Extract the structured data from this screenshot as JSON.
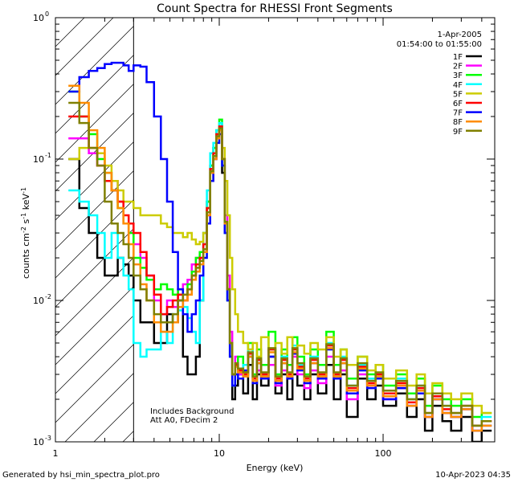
{
  "chart_data": {
    "type": "line",
    "title": "Count Spectra for RHESSI Front Segments",
    "xlabel": "Energy (keV)",
    "ylabel_parts": {
      "a": "counts cm",
      "b": "-2",
      "c": " s",
      "d": "-1",
      "e": " keV",
      "f": "-1"
    },
    "xscale": "log",
    "yscale": "log",
    "xlim": [
      1,
      480
    ],
    "ylim": [
      0.001,
      1
    ],
    "x_ticks": [
      {
        "value": 1,
        "label": "1"
      },
      {
        "value": 10,
        "label": "10"
      },
      {
        "value": 100,
        "label": "100"
      }
    ],
    "y_ticks": [
      {
        "value": 0.001,
        "base": "10",
        "exp": "-3"
      },
      {
        "value": 0.01,
        "base": "10",
        "exp": "-2"
      },
      {
        "value": 0.1,
        "base": "10",
        "exp": "-1"
      },
      {
        "value": 1,
        "base": "10",
        "exp": "0"
      }
    ],
    "date": "1-Apr-2005",
    "time_range": "01:54:00 to 01:55:00",
    "annotation_lines": [
      "Includes Background",
      "Att A0, FDecim 2"
    ],
    "attenuator_cutoff_keV": 3,
    "energy_edges": [
      1.2,
      1.4,
      1.6,
      1.8,
      2.0,
      2.2,
      2.4,
      2.6,
      2.8,
      3.0,
      3.3,
      3.6,
      4.0,
      4.4,
      4.8,
      5.2,
      5.6,
      6.0,
      6.4,
      6.8,
      7.2,
      7.6,
      8.0,
      8.4,
      8.8,
      9.2,
      9.6,
      10.0,
      10.4,
      10.8,
      11.2,
      11.6,
      12.0,
      12.5,
      13,
      14,
      15,
      16,
      17,
      18,
      20,
      22,
      24,
      26,
      28,
      30,
      33,
      36,
      40,
      45,
      50,
      55,
      60,
      70,
      80,
      90,
      100,
      120,
      140,
      160,
      180,
      200,
      230,
      260,
      300,
      350,
      400,
      460
    ],
    "series": [
      {
        "name": "1F",
        "color": "#000000",
        "values": [
          0.1,
          0.045,
          0.03,
          0.02,
          0.015,
          0.015,
          0.02,
          0.018,
          0.015,
          0.01,
          0.007,
          0.007,
          0.005,
          0.005,
          0.008,
          0.007,
          0.01,
          0.004,
          0.003,
          0.003,
          0.004,
          0.01,
          0.03,
          0.05,
          0.09,
          0.12,
          0.14,
          0.16,
          0.08,
          0.03,
          0.01,
          0.004,
          0.002,
          0.0025,
          0.003,
          0.0022,
          0.0035,
          0.002,
          0.003,
          0.0025,
          0.004,
          0.0022,
          0.003,
          0.002,
          0.003,
          0.0025,
          0.002,
          0.003,
          0.0022,
          0.0035,
          0.002,
          0.003,
          0.0015,
          0.0028,
          0.002,
          0.0025,
          0.0018,
          0.0022,
          0.0015,
          0.002,
          0.0012,
          0.0018,
          0.0014,
          0.0012,
          0.0015,
          0.001,
          0.0012
        ]
      },
      {
        "name": "2F",
        "color": "#ff00ff",
        "values": [
          0.14,
          0.14,
          0.11,
          0.09,
          0.07,
          0.07,
          0.05,
          0.035,
          0.03,
          0.025,
          0.02,
          0.015,
          0.01,
          0.008,
          0.01,
          0.009,
          0.012,
          0.013,
          0.014,
          0.018,
          0.02,
          0.02,
          0.025,
          0.04,
          0.08,
          0.1,
          0.14,
          0.16,
          0.1,
          0.04,
          0.015,
          0.006,
          0.003,
          0.004,
          0.003,
          0.0035,
          0.004,
          0.0028,
          0.0032,
          0.003,
          0.0035,
          0.0025,
          0.0032,
          0.0028,
          0.004,
          0.003,
          0.0024,
          0.0032,
          0.0026,
          0.004,
          0.0028,
          0.0032,
          0.002,
          0.003,
          0.0025,
          0.0028,
          0.002,
          0.0024,
          0.0018,
          0.0022,
          0.0015,
          0.002,
          0.0016,
          0.0015,
          0.0017,
          0.0012,
          0.0014
        ]
      },
      {
        "name": "3F",
        "color": "#00ff00",
        "values": [
          0.3,
          0.2,
          0.15,
          0.1,
          0.08,
          0.06,
          0.045,
          0.035,
          0.03,
          0.02,
          0.017,
          0.014,
          0.012,
          0.013,
          0.012,
          0.011,
          0.012,
          0.011,
          0.013,
          0.016,
          0.02,
          0.022,
          0.03,
          0.05,
          0.09,
          0.12,
          0.16,
          0.19,
          0.1,
          0.035,
          0.012,
          0.005,
          0.003,
          0.0035,
          0.004,
          0.003,
          0.005,
          0.003,
          0.0045,
          0.0035,
          0.006,
          0.003,
          0.0045,
          0.0035,
          0.0055,
          0.004,
          0.003,
          0.0045,
          0.0035,
          0.006,
          0.0035,
          0.0045,
          0.0028,
          0.004,
          0.003,
          0.0035,
          0.0025,
          0.003,
          0.0022,
          0.0028,
          0.0018,
          0.0025,
          0.002,
          0.0018,
          0.002,
          0.0015,
          0.0016
        ]
      },
      {
        "name": "4F",
        "color": "#00ffff",
        "values": [
          0.06,
          0.05,
          0.04,
          0.03,
          0.02,
          0.03,
          0.02,
          0.015,
          0.012,
          0.005,
          0.004,
          0.0045,
          0.0045,
          0.006,
          0.005,
          0.008,
          0.0085,
          0.009,
          0.0075,
          0.006,
          0.005,
          0.01,
          0.03,
          0.06,
          0.11,
          0.13,
          0.16,
          0.18,
          0.09,
          0.03,
          0.01,
          0.004,
          0.0025,
          0.003,
          0.0028,
          0.0035,
          0.0045,
          0.0028,
          0.0038,
          0.003,
          0.0045,
          0.0028,
          0.004,
          0.003,
          0.0048,
          0.0035,
          0.0028,
          0.004,
          0.003,
          0.005,
          0.003,
          0.004,
          0.0025,
          0.0035,
          0.0028,
          0.003,
          0.0022,
          0.0028,
          0.002,
          0.0025,
          0.0016,
          0.0022,
          0.0018,
          0.0016,
          0.0018,
          0.0013,
          0.0015
        ]
      },
      {
        "name": "5F",
        "color": "#cccc00",
        "values": [
          0.1,
          0.12,
          0.12,
          0.11,
          0.09,
          0.07,
          0.06,
          0.05,
          0.05,
          0.045,
          0.04,
          0.04,
          0.04,
          0.035,
          0.033,
          0.03,
          0.03,
          0.028,
          0.03,
          0.027,
          0.025,
          0.026,
          0.03,
          0.045,
          0.07,
          0.1,
          0.13,
          0.15,
          0.12,
          0.07,
          0.04,
          0.02,
          0.012,
          0.008,
          0.006,
          0.005,
          0.0045,
          0.005,
          0.004,
          0.0055,
          0.0045,
          0.005,
          0.0042,
          0.0055,
          0.0045,
          0.0048,
          0.0042,
          0.005,
          0.0045,
          0.0055,
          0.004,
          0.0045,
          0.0035,
          0.004,
          0.0032,
          0.0035,
          0.0028,
          0.0032,
          0.0025,
          0.003,
          0.0022,
          0.0026,
          0.0022,
          0.002,
          0.0022,
          0.0018,
          0.0016
        ]
      },
      {
        "name": "6F",
        "color": "#ff0000",
        "values": [
          0.2,
          0.2,
          0.12,
          0.09,
          0.07,
          0.06,
          0.05,
          0.04,
          0.035,
          0.03,
          0.022,
          0.015,
          0.011,
          0.008,
          0.009,
          0.01,
          0.011,
          0.01,
          0.012,
          0.015,
          0.018,
          0.02,
          0.025,
          0.045,
          0.085,
          0.11,
          0.15,
          0.17,
          0.1,
          0.035,
          0.012,
          0.005,
          0.003,
          0.0035,
          0.0032,
          0.003,
          0.0042,
          0.0028,
          0.0038,
          0.003,
          0.0045,
          0.0028,
          0.0038,
          0.003,
          0.0045,
          0.0034,
          0.0028,
          0.0038,
          0.003,
          0.0048,
          0.003,
          0.0038,
          0.0024,
          0.0034,
          0.0026,
          0.003,
          0.0022,
          0.0026,
          0.0019,
          0.0024,
          0.0016,
          0.0021,
          0.0017,
          0.0016,
          0.0018,
          0.0013,
          0.0014
        ]
      },
      {
        "name": "7F",
        "color": "#0000ff",
        "values": [
          0.3,
          0.38,
          0.42,
          0.44,
          0.47,
          0.48,
          0.48,
          0.46,
          0.42,
          0.46,
          0.45,
          0.35,
          0.2,
          0.1,
          0.05,
          0.022,
          0.012,
          0.008,
          0.006,
          0.008,
          0.01,
          0.015,
          0.02,
          0.035,
          0.07,
          0.1,
          0.13,
          0.15,
          0.09,
          0.03,
          0.01,
          0.004,
          0.0025,
          0.003,
          0.0028,
          0.0032,
          0.004,
          0.0026,
          0.0036,
          0.0028,
          0.004,
          0.0026,
          0.0036,
          0.0028,
          0.0042,
          0.0032,
          0.0026,
          0.0036,
          0.0028,
          0.0045,
          0.0028,
          0.0036,
          0.0022,
          0.0032,
          0.0024,
          0.0028,
          0.002,
          0.0024,
          0.0018,
          0.0022,
          0.0015,
          0.002,
          0.0016,
          0.0015,
          0.0017,
          0.0012,
          0.0013
        ]
      },
      {
        "name": "8F",
        "color": "#ff8c00",
        "values": [
          0.33,
          0.25,
          0.16,
          0.12,
          0.08,
          0.06,
          0.045,
          0.035,
          0.025,
          0.018,
          0.013,
          0.01,
          0.007,
          0.006,
          0.006,
          0.007,
          0.009,
          0.01,
          0.011,
          0.014,
          0.016,
          0.018,
          0.022,
          0.04,
          0.08,
          0.1,
          0.14,
          0.16,
          0.1,
          0.035,
          0.012,
          0.005,
          0.003,
          0.0034,
          0.0031,
          0.0029,
          0.004,
          0.0027,
          0.0036,
          0.0029,
          0.0043,
          0.0027,
          0.0036,
          0.0029,
          0.0043,
          0.0033,
          0.0027,
          0.0036,
          0.0029,
          0.0046,
          0.0029,
          0.0036,
          0.0023,
          0.0033,
          0.0025,
          0.0029,
          0.0021,
          0.0025,
          0.0018,
          0.0023,
          0.0015,
          0.002,
          0.0016,
          0.0015,
          0.0017,
          0.0012,
          0.0013
        ]
      },
      {
        "name": "9F",
        "color": "#808000",
        "values": [
          0.25,
          0.18,
          0.12,
          0.09,
          0.05,
          0.035,
          0.03,
          0.025,
          0.02,
          0.015,
          0.012,
          0.01,
          0.008,
          0.007,
          0.007,
          0.008,
          0.01,
          0.011,
          0.012,
          0.015,
          0.017,
          0.019,
          0.023,
          0.042,
          0.082,
          0.105,
          0.145,
          0.165,
          0.1,
          0.036,
          0.012,
          0.005,
          0.003,
          0.0036,
          0.0033,
          0.0031,
          0.0043,
          0.0029,
          0.0039,
          0.0031,
          0.0046,
          0.0029,
          0.0039,
          0.0031,
          0.0046,
          0.0036,
          0.0029,
          0.0039,
          0.0031,
          0.0049,
          0.0031,
          0.0039,
          0.0025,
          0.0036,
          0.0027,
          0.0031,
          0.0023,
          0.0027,
          0.002,
          0.0025,
          0.0016,
          0.0022,
          0.0018,
          0.0016,
          0.0018,
          0.0013,
          0.0014
        ]
      }
    ]
  },
  "footer": {
    "generated_by": "Generated by hsi_min_spectra_plot.pro",
    "timestamp": "10-Apr-2023 04:35"
  }
}
